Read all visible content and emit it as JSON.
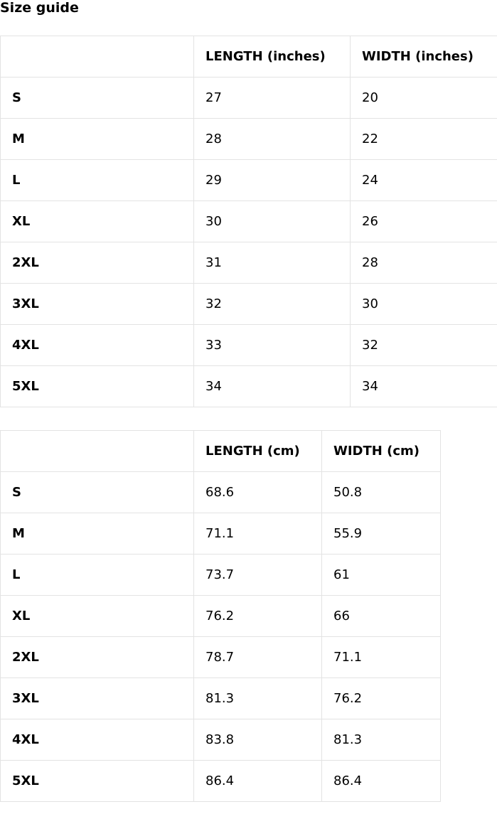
{
  "title": "Size guide",
  "tables": [
    {
      "headers": [
        "",
        "LENGTH (inches)",
        "WIDTH (inches)"
      ],
      "rows": [
        [
          "S",
          "27",
          "20"
        ],
        [
          "M",
          "28",
          "22"
        ],
        [
          "L",
          "29",
          "24"
        ],
        [
          "XL",
          "30",
          "26"
        ],
        [
          "2XL",
          "31",
          "28"
        ],
        [
          "3XL",
          "32",
          "30"
        ],
        [
          "4XL",
          "33",
          "32"
        ],
        [
          "5XL",
          "34",
          "34"
        ]
      ]
    },
    {
      "headers": [
        "",
        "LENGTH (cm)",
        "WIDTH (cm)"
      ],
      "rows": [
        [
          "S",
          "68.6",
          "50.8"
        ],
        [
          "M",
          "71.1",
          "55.9"
        ],
        [
          "L",
          "73.7",
          "61"
        ],
        [
          "XL",
          "76.2",
          "66"
        ],
        [
          "2XL",
          "78.7",
          "71.1"
        ],
        [
          "3XL",
          "81.3",
          "76.2"
        ],
        [
          "4XL",
          "83.8",
          "81.3"
        ],
        [
          "5XL",
          "86.4",
          "86.4"
        ]
      ]
    }
  ]
}
